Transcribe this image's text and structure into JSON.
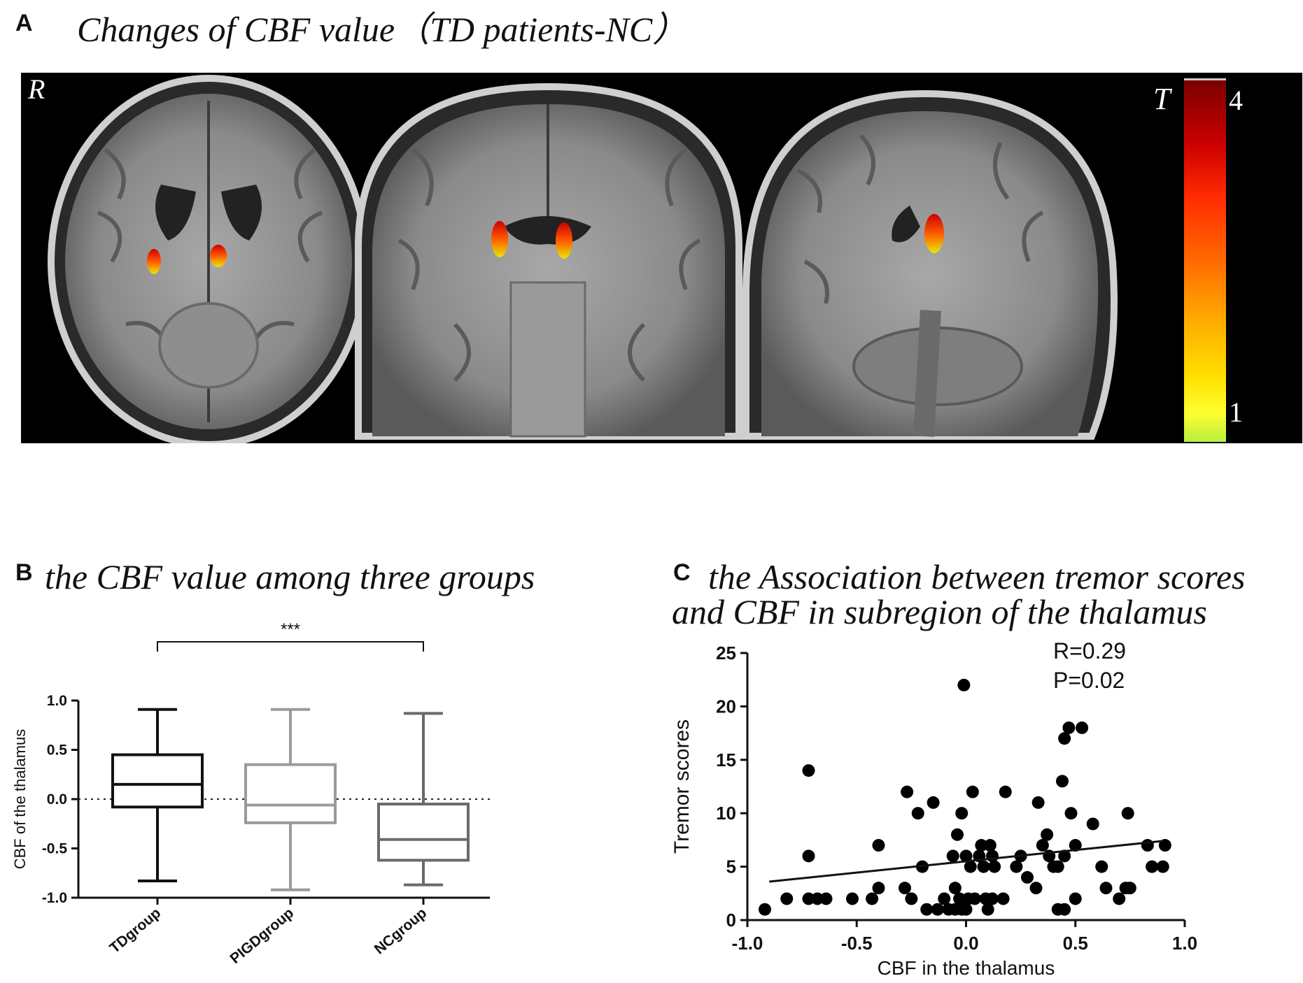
{
  "panelA": {
    "letter": "A",
    "title": "Changes of CBF value（TD patients-NC）",
    "side_label": "R",
    "colorbar": {
      "label": "T",
      "max_label": "4",
      "min_label": "1",
      "colors": [
        "#7a0000",
        "#cc0000",
        "#ff2a00",
        "#ff6a00",
        "#ffaa00",
        "#ffe000",
        "#ffff30",
        "#b8f040"
      ]
    },
    "views": [
      "axial",
      "coronal",
      "sagittal"
    ]
  },
  "panelB": {
    "letter": "B",
    "title": "the CBF value among three groups"
  },
  "panelC": {
    "letter": "C",
    "title_line1": "the  Association between tremor scores",
    "title_line2": "and CBF in subregion of the thalamus"
  },
  "chart_data": [
    {
      "type": "box",
      "ylabel": "CBF of the thalamus",
      "ylim": [
        -1.0,
        1.0
      ],
      "yticks": [
        "1.0",
        "0.5",
        "0.0",
        "-0.5",
        "-1.0"
      ],
      "categories": [
        "TDgroup",
        "PIGDgroup",
        "NCgroup"
      ],
      "boxes": [
        {
          "name": "TDgroup",
          "min": -0.83,
          "q1": -0.08,
          "median": 0.15,
          "q3": 0.45,
          "max": 0.91,
          "color": "#111111"
        },
        {
          "name": "PIGDgroup",
          "min": -0.92,
          "q1": -0.24,
          "median": -0.06,
          "q3": 0.35,
          "max": 0.91,
          "color": "#9a9a9a"
        },
        {
          "name": "NCgroup",
          "min": -0.87,
          "q1": -0.62,
          "median": -0.41,
          "q3": -0.05,
          "max": 0.87,
          "color": "#6a6a6a"
        }
      ],
      "reference_line": 0.0,
      "annotation": {
        "text": "***",
        "between": [
          "TDgroup",
          "NCgroup"
        ]
      }
    },
    {
      "type": "scatter",
      "xlabel": "CBF in the thalamus",
      "ylabel": "Tremor scores",
      "xlim": [
        -1.0,
        1.0
      ],
      "ylim": [
        0,
        25
      ],
      "xticks": [
        "-1.0",
        "-0.5",
        "0.0",
        "0.5",
        "1.0"
      ],
      "yticks": [
        "0",
        "5",
        "10",
        "15",
        "20",
        "25"
      ],
      "stats": [
        "R=0.29",
        "P=0.02"
      ],
      "fit_line": {
        "x": [
          -0.9,
          0.9
        ],
        "y": [
          3.6,
          7.4
        ]
      },
      "points": [
        [
          -0.92,
          1
        ],
        [
          -0.82,
          2
        ],
        [
          -0.72,
          14
        ],
        [
          -0.72,
          6
        ],
        [
          -0.72,
          2
        ],
        [
          -0.68,
          2
        ],
        [
          -0.64,
          2
        ],
        [
          -0.52,
          2
        ],
        [
          -0.43,
          2
        ],
        [
          -0.4,
          7
        ],
        [
          -0.4,
          3
        ],
        [
          -0.28,
          3
        ],
        [
          -0.27,
          12
        ],
        [
          -0.25,
          2
        ],
        [
          -0.22,
          10
        ],
        [
          -0.2,
          5
        ],
        [
          -0.18,
          1
        ],
        [
          -0.15,
          11
        ],
        [
          -0.13,
          1
        ],
        [
          -0.1,
          2
        ],
        [
          -0.08,
          1
        ],
        [
          -0.06,
          6
        ],
        [
          -0.05,
          3
        ],
        [
          -0.05,
          1
        ],
        [
          -0.04,
          8
        ],
        [
          -0.03,
          2
        ],
        [
          -0.02,
          10
        ],
        [
          -0.02,
          1
        ],
        [
          0.0,
          6
        ],
        [
          0.0,
          1
        ],
        [
          0.01,
          2
        ],
        [
          0.02,
          5
        ],
        [
          0.03,
          12
        ],
        [
          0.04,
          2
        ],
        [
          -0.01,
          22
        ],
        [
          0.06,
          6
        ],
        [
          0.07,
          7
        ],
        [
          0.08,
          5
        ],
        [
          0.09,
          2
        ],
        [
          0.1,
          1
        ],
        [
          0.11,
          7
        ],
        [
          0.12,
          6
        ],
        [
          0.13,
          5
        ],
        [
          0.18,
          12
        ],
        [
          0.12,
          2
        ],
        [
          0.17,
          2
        ],
        [
          0.23,
          5
        ],
        [
          0.25,
          6
        ],
        [
          0.28,
          4
        ],
        [
          0.32,
          3
        ],
        [
          0.33,
          11
        ],
        [
          0.35,
          7
        ],
        [
          0.37,
          8
        ],
        [
          0.38,
          6
        ],
        [
          0.4,
          5
        ],
        [
          0.42,
          5
        ],
        [
          0.42,
          1
        ],
        [
          0.44,
          13
        ],
        [
          0.45,
          17
        ],
        [
          0.45,
          1
        ],
        [
          0.47,
          18
        ],
        [
          0.48,
          10
        ],
        [
          0.5,
          2
        ],
        [
          0.5,
          7
        ],
        [
          0.45,
          6
        ],
        [
          0.53,
          18
        ],
        [
          0.58,
          9
        ],
        [
          0.62,
          5
        ],
        [
          0.64,
          3
        ],
        [
          0.7,
          2
        ],
        [
          0.73,
          3
        ],
        [
          0.74,
          10
        ],
        [
          0.75,
          3
        ],
        [
          0.83,
          7
        ],
        [
          0.85,
          5
        ],
        [
          0.9,
          5
        ],
        [
          0.91,
          7
        ]
      ]
    }
  ]
}
